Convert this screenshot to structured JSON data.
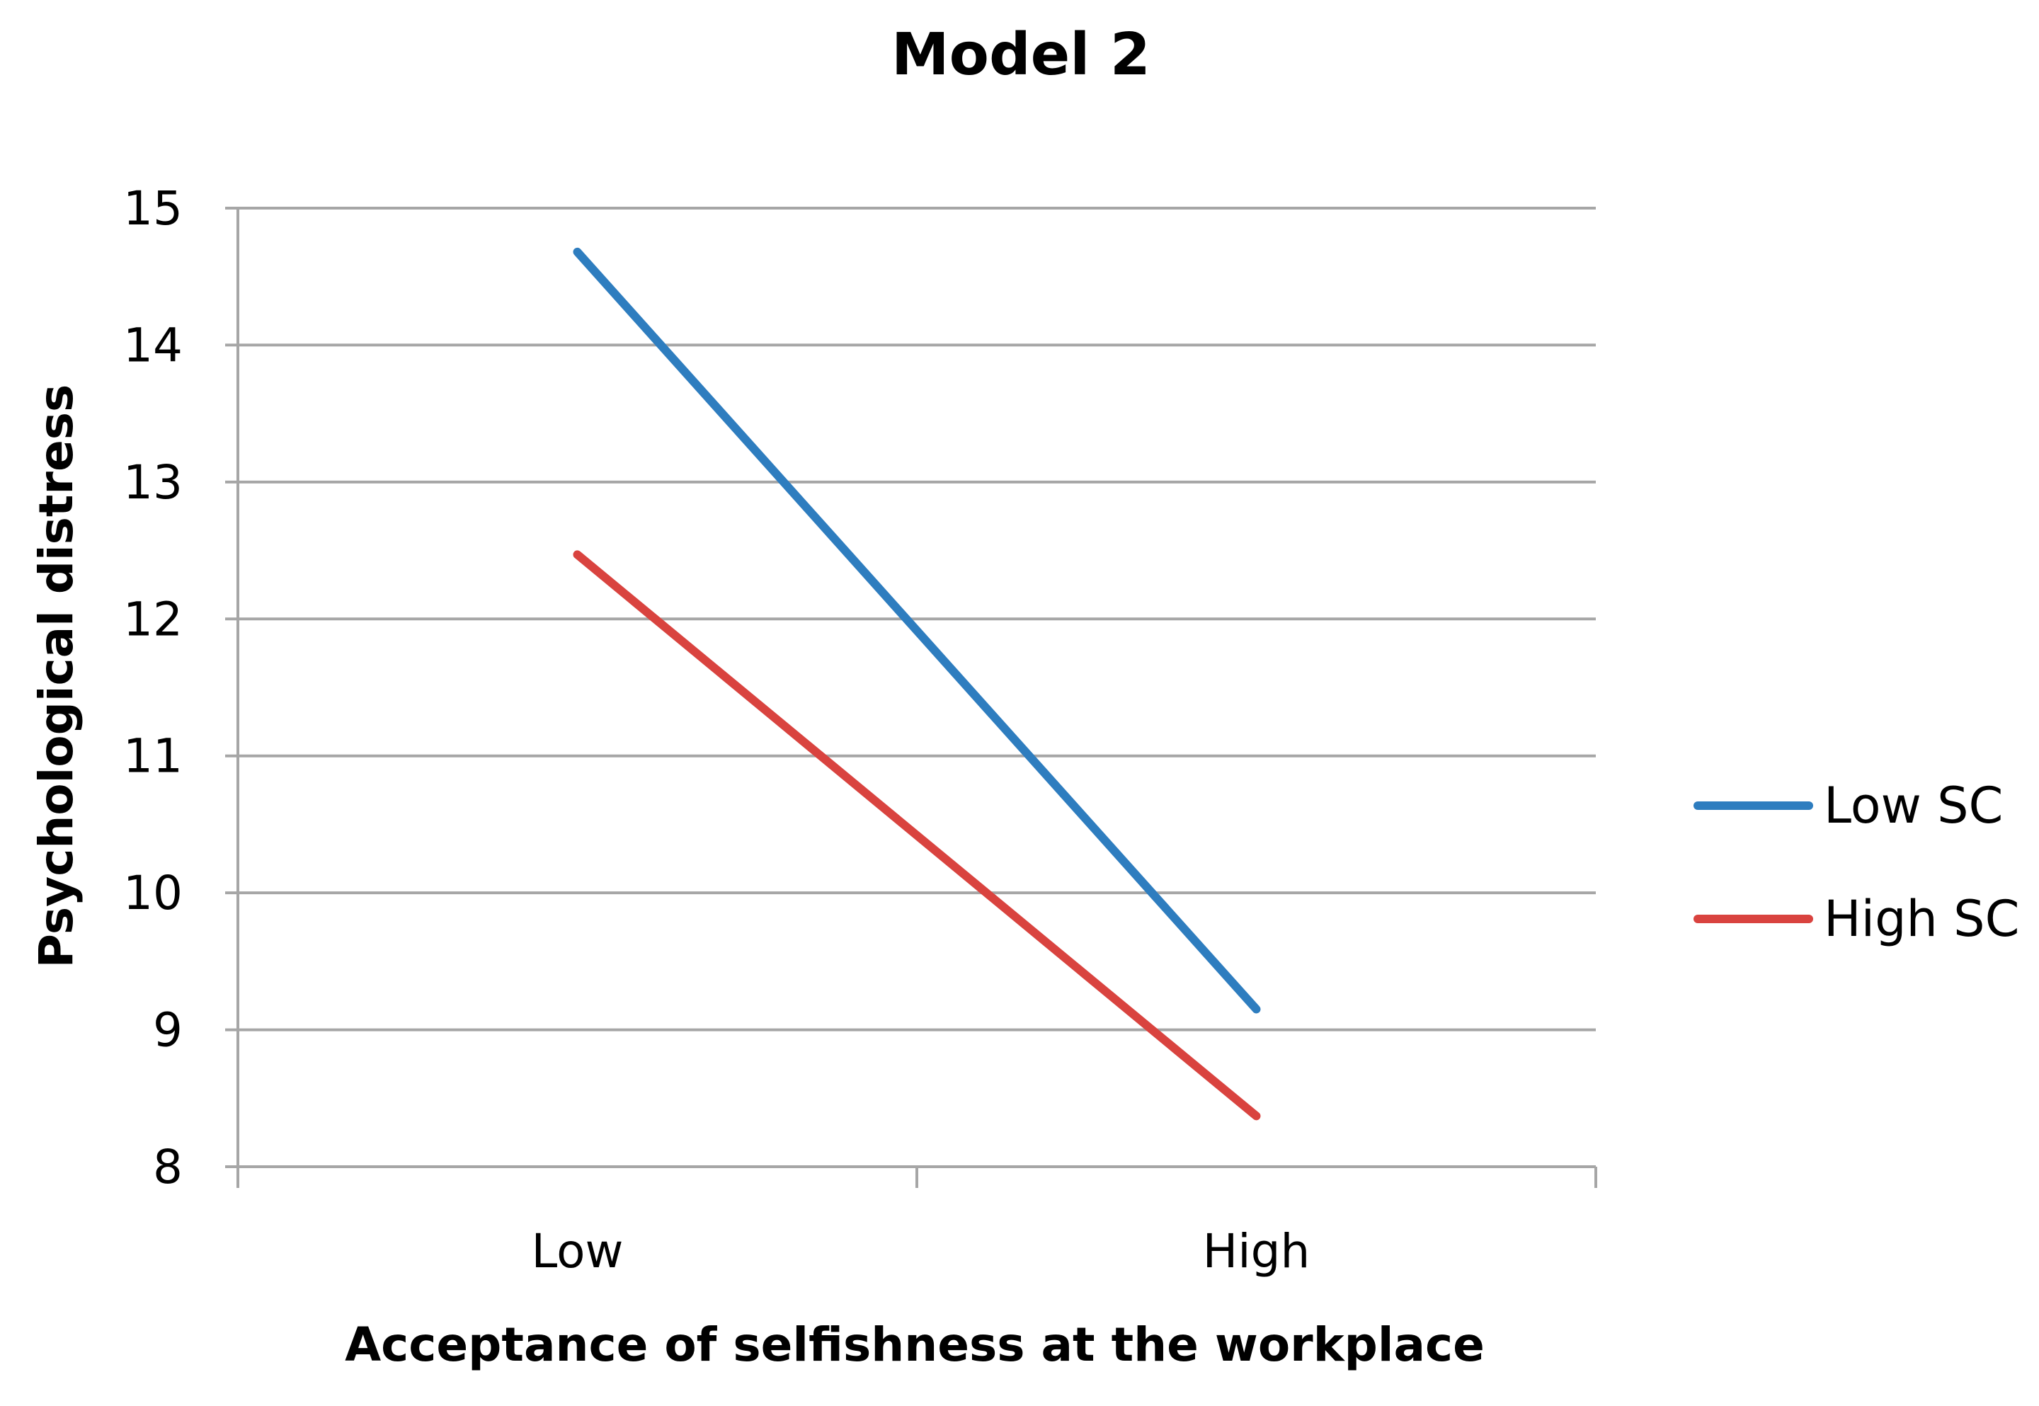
{
  "chart_data": {
    "type": "line",
    "title": "Model 2",
    "xlabel": "Acceptance of selfishness at the workplace",
    "ylabel": "Psychological distress",
    "categories": [
      "Low",
      "High"
    ],
    "ylim": [
      8,
      15
    ],
    "yticks": [
      "8",
      "9",
      "10",
      "11",
      "12",
      "13",
      "14",
      "15"
    ],
    "grid": true,
    "legend_position": "right",
    "series": [
      {
        "name": "Low SC",
        "values": [
          14.68,
          9.15
        ],
        "color": "#2e7dbf"
      },
      {
        "name": "High SC",
        "values": [
          12.47,
          8.37
        ],
        "color": "#d9433f"
      }
    ]
  }
}
